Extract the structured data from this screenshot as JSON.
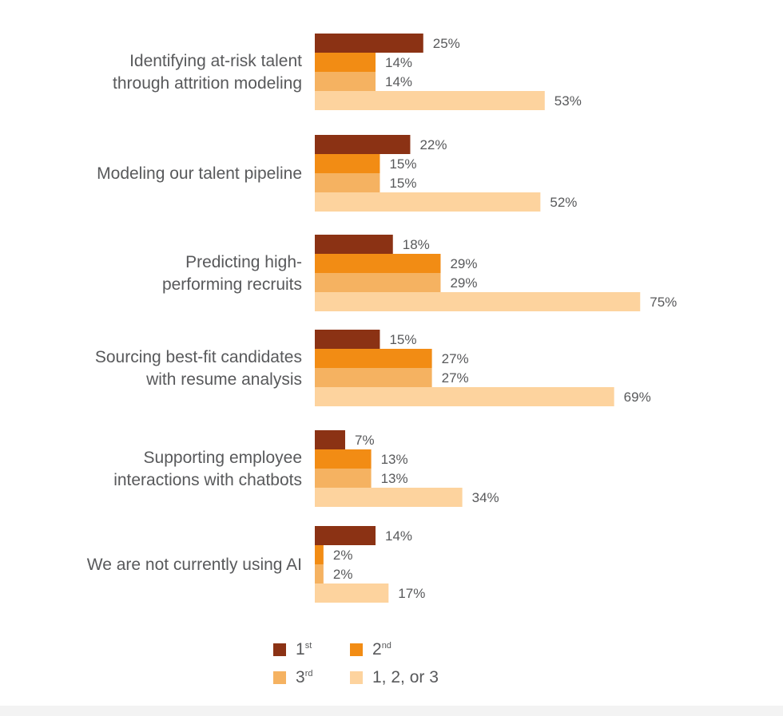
{
  "chart_data": {
    "type": "bar",
    "orientation": "horizontal",
    "categories": [
      [
        "Identifying at-risk talent",
        "through attrition modeling"
      ],
      [
        "Modeling our talent pipeline"
      ],
      [
        "Predicting high-",
        "performing recruits"
      ],
      [
        "Sourcing best-fit candidates",
        "with resume analysis"
      ],
      [
        "Supporting employee",
        "interactions with chatbots"
      ],
      [
        "We are not currently using AI"
      ]
    ],
    "series": [
      {
        "name": "1st",
        "color": "#8b3214",
        "values": [
          25,
          22,
          18,
          15,
          7,
          14
        ]
      },
      {
        "name": "2nd",
        "color": "#f28c14",
        "values": [
          14,
          15,
          29,
          27,
          13,
          2
        ]
      },
      {
        "name": "3rd",
        "color": "#f5b261",
        "values": [
          14,
          15,
          29,
          27,
          13,
          2
        ]
      },
      {
        "name": "1, 2, or 3",
        "color": "#fdd39e",
        "values": [
          53,
          52,
          75,
          69,
          34,
          17
        ]
      }
    ],
    "value_suffix": "%",
    "grid": false,
    "legend_position": "bottom"
  },
  "legend": [
    {
      "base": "1",
      "sup": "st",
      "color": "#8b3214"
    },
    {
      "base": "2",
      "sup": "nd",
      "color": "#f28c14"
    },
    {
      "base": "3",
      "sup": "rd",
      "color": "#f5b261"
    },
    {
      "base": "1, 2, or 3",
      "sup": "",
      "color": "#fdd39e"
    }
  ]
}
